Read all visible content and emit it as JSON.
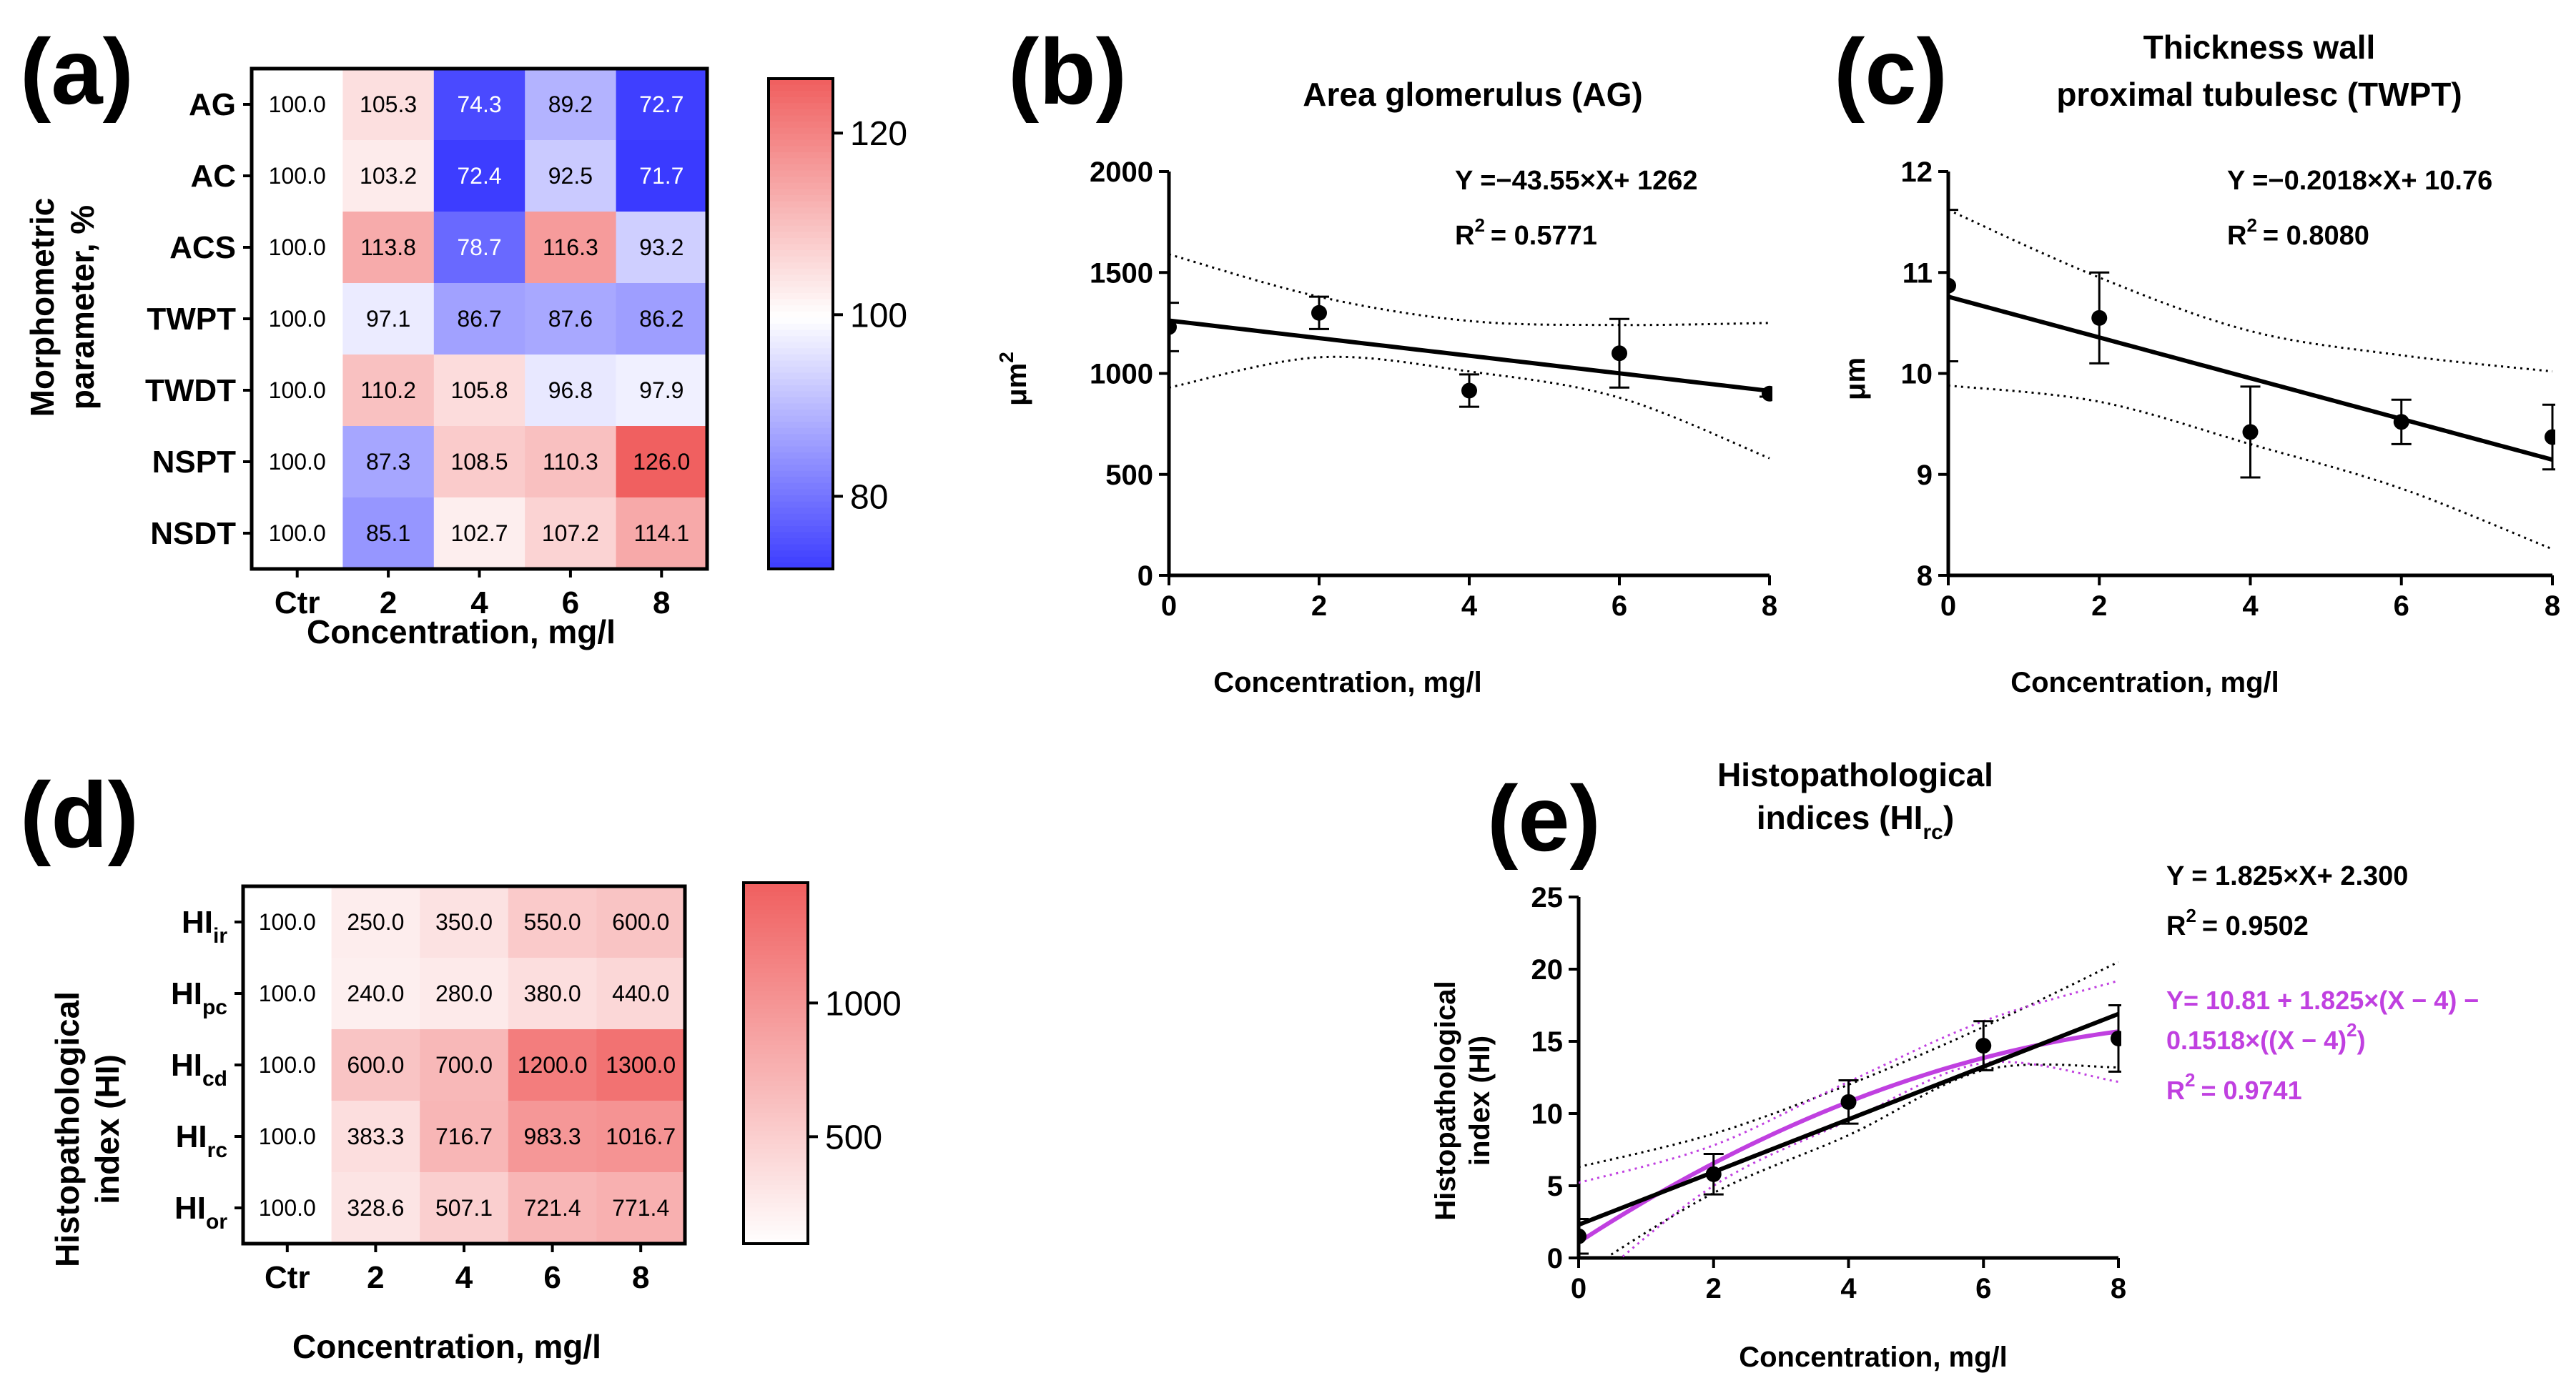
{
  "colors": {
    "blue": "#3a3aff",
    "white": "#ffffff",
    "red": "#f06060",
    "purple": "#c040e0",
    "black": "#000000"
  },
  "panels": {
    "a": {
      "letter": "(a)",
      "ylabel_line1": "Morphometric",
      "ylabel_line2": "parameter, %",
      "xlabel": "Concentration, mg/l",
      "rows": [
        "AG",
        "AC",
        "ACS",
        "TWPT",
        "TWDT",
        "NSPT",
        "NSDT"
      ],
      "cols": [
        "Ctr",
        "2",
        "4",
        "6",
        "8"
      ],
      "values": [
        [
          "100.0",
          "105.3",
          "74.3",
          "89.2",
          "72.7"
        ],
        [
          "100.0",
          "103.2",
          "72.4",
          "92.5",
          "71.7"
        ],
        [
          "100.0",
          "113.8",
          "78.7",
          "116.3",
          "93.2"
        ],
        [
          "100.0",
          "97.1",
          "86.7",
          "87.6",
          "86.2"
        ],
        [
          "100.0",
          "110.2",
          "105.8",
          "96.8",
          "97.9"
        ],
        [
          "100.0",
          "87.3",
          "108.5",
          "110.3",
          "126.0"
        ],
        [
          "100.0",
          "85.1",
          "102.7",
          "107.2",
          "114.1"
        ]
      ],
      "colorbar_ticks": [
        "120",
        "100",
        "80"
      ]
    },
    "d": {
      "letter": "(d)",
      "ylabel_line1": "Histopathological",
      "ylabel_line2": "index (HI)",
      "xlabel": "Concentration, mg/l",
      "rows": [
        {
          "base": "HI",
          "sub": "ir"
        },
        {
          "base": "HI",
          "sub": "pc"
        },
        {
          "base": "HI",
          "sub": "cd"
        },
        {
          "base": "HI",
          "sub": "rc"
        },
        {
          "base": "HI",
          "sub": "or"
        }
      ],
      "cols": [
        "Ctr",
        "2",
        "4",
        "6",
        "8"
      ],
      "values": [
        [
          "100.0",
          "250.0",
          "350.0",
          "550.0",
          "600.0"
        ],
        [
          "100.0",
          "240.0",
          "280.0",
          "380.0",
          "440.0"
        ],
        [
          "100.0",
          "600.0",
          "700.0",
          "1200.0",
          "1300.0"
        ],
        [
          "100.0",
          "383.3",
          "716.7",
          "983.3",
          "1016.7"
        ],
        [
          "100.0",
          "328.6",
          "507.1",
          "721.4",
          "771.4"
        ]
      ],
      "colorbar_ticks": [
        "1000",
        "500"
      ]
    },
    "b": {
      "letter": "(b)",
      "title": "Area glomerulus (AG)",
      "ylabel_base": "μm",
      "ylabel_sup": "2",
      "xlabel": "Concentration, mg/l",
      "equation": "Y =−43.55×X+ 1262",
      "r2_label": "R",
      "r2_sup": "2",
      "r2_value": "=  0.5771",
      "x_ticks": [
        "0",
        "2",
        "4",
        "6",
        "8"
      ],
      "y_ticks": [
        "0",
        "500",
        "1000",
        "1500",
        "2000"
      ]
    },
    "c": {
      "letter": "(c)",
      "title_line1": "Thickness wall",
      "title_line2": "proximal tubulesc (TWPT)",
      "ylabel": "μm",
      "xlabel": "Concentration, mg/l",
      "equation": "Y =−0.2018×X+ 10.76",
      "r2_label": "R",
      "r2_sup": "2",
      "r2_value": "=  0.8080",
      "x_ticks": [
        "0",
        "2",
        "4",
        "6",
        "8"
      ],
      "y_ticks": [
        "8",
        "9",
        "10",
        "11",
        "12"
      ]
    },
    "e": {
      "letter": "(e)",
      "title_line1": "Histopathological",
      "title_line2_base": "indices (HI",
      "title_line2_sub": "rc",
      "title_line2_end": ")",
      "ylabel_line1": "Histopathological",
      "ylabel_line2": "index (HI)",
      "xlabel": "Concentration, mg/l",
      "equation_linear": "Y = 1.825×X+ 2.300",
      "r2_linear_label": "R",
      "r2_linear_sup": "2",
      "r2_linear_value": "=  0.9502",
      "equation_quad_line1": "Y= 10.81 + 1.825×(X − 4) −",
      "equation_quad_line2_base": "0.1518×((X − 4)",
      "equation_quad_line2_sup": "2",
      "equation_quad_line2_end": ")",
      "r2_quad_label": "R",
      "r2_quad_sup": "2",
      "r2_quad_value": "=  0.9741",
      "x_ticks": [
        "0",
        "2",
        "4",
        "6",
        "8"
      ],
      "y_ticks": [
        "0",
        "5",
        "10",
        "15",
        "20",
        "25"
      ]
    }
  },
  "chart_data": [
    {
      "type": "heatmap",
      "panel": "a",
      "rows": [
        "AG",
        "AC",
        "ACS",
        "TWPT",
        "TWDT",
        "NSPT",
        "NSDT"
      ],
      "cols": [
        "Ctr",
        "2",
        "4",
        "6",
        "8"
      ],
      "values": [
        [
          100.0,
          105.3,
          74.3,
          89.2,
          72.7
        ],
        [
          100.0,
          103.2,
          72.4,
          92.5,
          71.7
        ],
        [
          100.0,
          113.8,
          78.7,
          116.3,
          93.2
        ],
        [
          100.0,
          97.1,
          86.7,
          87.6,
          86.2
        ],
        [
          100.0,
          110.2,
          105.8,
          96.8,
          97.9
        ],
        [
          100.0,
          87.3,
          108.5,
          110.3,
          126.0
        ],
        [
          100.0,
          85.1,
          102.7,
          107.2,
          114.1
        ]
      ],
      "color_range": [
        72,
        126
      ],
      "center": 100,
      "xlabel": "Concentration, mg/l",
      "ylabel": "Morphometric parameter, %"
    },
    {
      "type": "heatmap",
      "panel": "d",
      "rows": [
        "HIir",
        "HIpc",
        "HIcd",
        "HIrc",
        "HIor"
      ],
      "cols": [
        "Ctr",
        "2",
        "4",
        "6",
        "8"
      ],
      "values": [
        [
          100.0,
          250.0,
          350.0,
          550.0,
          600.0
        ],
        [
          100.0,
          240.0,
          280.0,
          380.0,
          440.0
        ],
        [
          100.0,
          600.0,
          700.0,
          1200.0,
          1300.0
        ],
        [
          100.0,
          383.3,
          716.7,
          983.3,
          1016.7
        ],
        [
          100.0,
          328.6,
          507.1,
          721.4,
          771.4
        ]
      ],
      "color_range": [
        100,
        1300
      ],
      "xlabel": "Concentration, mg/l",
      "ylabel": "Histopathological index (HI)"
    },
    {
      "type": "scatter",
      "panel": "b",
      "title": "Area glomerulus (AG)",
      "x": [
        0,
        2,
        4,
        6,
        8
      ],
      "y": [
        1230,
        1300,
        915,
        1100,
        900
      ],
      "err": [
        120,
        80,
        80,
        170,
        15
      ],
      "fit": {
        "slope": -43.55,
        "intercept": 1262
      },
      "ci_upper": [
        1590,
        1380,
        1260,
        1240,
        1250
      ],
      "ci_lower": [
        930,
        1080,
        1010,
        880,
        580
      ],
      "xlim": [
        0,
        8
      ],
      "ylim": [
        0,
        2000
      ],
      "xlabel": "Concentration, mg/l",
      "ylabel": "μm2"
    },
    {
      "type": "scatter",
      "panel": "c",
      "title": "Thickness wall proximal tubulesc (TWPT)",
      "x": [
        0,
        2,
        4,
        6,
        8
      ],
      "y": [
        10.87,
        10.55,
        9.42,
        9.52,
        9.37
      ],
      "err": [
        0.75,
        0.45,
        0.45,
        0.22,
        0.32
      ],
      "fit": {
        "slope": -0.2018,
        "intercept": 10.76
      },
      "ci_upper": [
        11.62,
        10.95,
        10.42,
        10.18,
        10.02
      ],
      "ci_lower": [
        9.88,
        9.72,
        9.3,
        8.86,
        8.26
      ],
      "xlim": [
        0,
        8
      ],
      "ylim": [
        8,
        12
      ],
      "xlabel": "Concentration, mg/l",
      "ylabel": "μm"
    },
    {
      "type": "scatter",
      "panel": "e",
      "title": "Histopathological indices (HIrc)",
      "x": [
        0,
        2,
        4,
        6,
        8
      ],
      "y": [
        1.5,
        5.8,
        10.8,
        14.7,
        15.2
      ],
      "err": [
        1.2,
        1.4,
        1.5,
        1.7,
        2.3
      ],
      "fit_linear": {
        "slope": 1.825,
        "intercept": 2.3
      },
      "fit_quadratic": {
        "a": 10.81,
        "b": 1.825,
        "c": -0.1518,
        "center": 4
      },
      "ci_linear_upper": [
        6.3,
        8.6,
        12.0,
        16.0,
        20.5
      ],
      "ci_linear_lower": [
        -1.2,
        4.5,
        8.5,
        13.0,
        13.2
      ],
      "ci_quad_upper": [
        5.2,
        7.8,
        12.2,
        16.4,
        19.2
      ],
      "ci_quad_lower": [
        -2.5,
        5.0,
        9.5,
        13.5,
        12.2
      ],
      "xlim": [
        0,
        8
      ],
      "ylim": [
        0,
        25
      ],
      "xlabel": "Concentration, mg/l",
      "ylabel": "Histopathological index (HI)"
    }
  ]
}
